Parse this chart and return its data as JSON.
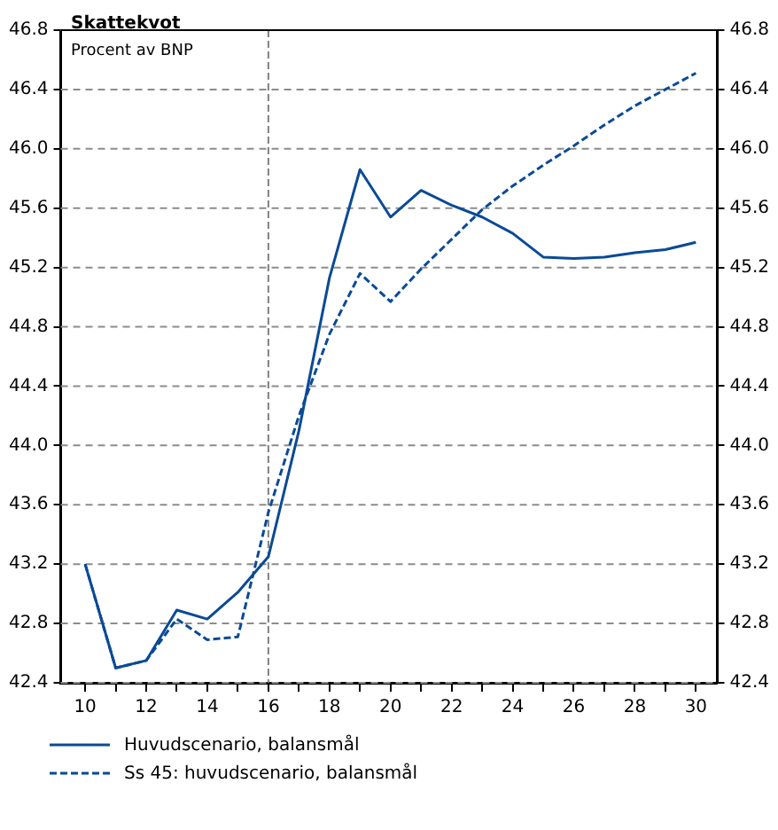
{
  "chart_data": {
    "type": "line",
    "title": "Skattekvot",
    "subtitle": "Procent av BNP",
    "x": [
      10,
      11,
      12,
      13,
      14,
      15,
      16,
      17,
      18,
      19,
      20,
      21,
      22,
      23,
      24,
      25,
      26,
      27,
      28,
      29,
      30
    ],
    "xlim": [
      9.2,
      30.7
    ],
    "xticks": [
      10,
      {
        "value": 11,
        "label": null
      },
      12,
      {
        "value": 13,
        "label": null
      },
      14,
      {
        "value": 15,
        "label": null
      },
      16,
      {
        "value": 17,
        "label": null
      },
      18,
      {
        "value": 19,
        "label": null
      },
      20,
      {
        "value": 21,
        "label": null
      },
      22,
      {
        "value": 23,
        "label": null
      },
      24,
      {
        "value": 25,
        "label": null
      },
      26,
      {
        "value": 27,
        "label": null
      },
      28,
      {
        "value": 29,
        "label": null
      },
      30
    ],
    "ylim": [
      42.4,
      46.8
    ],
    "yticks": [
      42.4,
      42.8,
      43.2,
      43.6,
      {
        "value": 44,
        "label": "44.0"
      },
      44.4,
      44.8,
      45.2,
      45.6,
      {
        "value": 46,
        "label": "46.0"
      },
      46.4,
      46.8
    ],
    "y2lim": [
      42.4,
      46.8
    ],
    "y2ticks": [
      42.4,
      42.8,
      43.2,
      43.6,
      {
        "value": 44,
        "label": "44.0"
      },
      44.4,
      44.8,
      45.2,
      45.6,
      {
        "value": 46,
        "label": "46.0"
      },
      46.4,
      46.8
    ],
    "series": [
      {
        "name": "Huvudscenario, balansmål",
        "color": "#0a4a96",
        "line_style": "solid",
        "values": [
          43.2,
          42.5,
          42.55,
          42.89,
          42.83,
          43.01,
          43.25,
          44.1,
          45.13,
          45.86,
          45.54,
          45.72,
          45.62,
          45.54,
          45.43,
          45.27,
          45.26,
          45.27,
          45.3,
          45.32,
          45.37
        ]
      },
      {
        "name": "Ss 45: huvudscenario, balansmål",
        "color": "#0a4a96",
        "line_style": "dashed",
        "values": [
          43.2,
          42.5,
          42.55,
          42.83,
          42.69,
          42.71,
          43.55,
          44.2,
          44.75,
          45.16,
          44.97,
          45.19,
          45.39,
          45.59,
          45.75,
          45.89,
          46.02,
          46.16,
          46.29,
          46.4,
          46.51
        ]
      }
    ],
    "ref_lines": [
      {
        "axis": "x",
        "value": 16,
        "color": "#808080",
        "line_style": "dashed"
      }
    ],
    "grid": "y",
    "marker": "none",
    "legend": "bottom"
  }
}
